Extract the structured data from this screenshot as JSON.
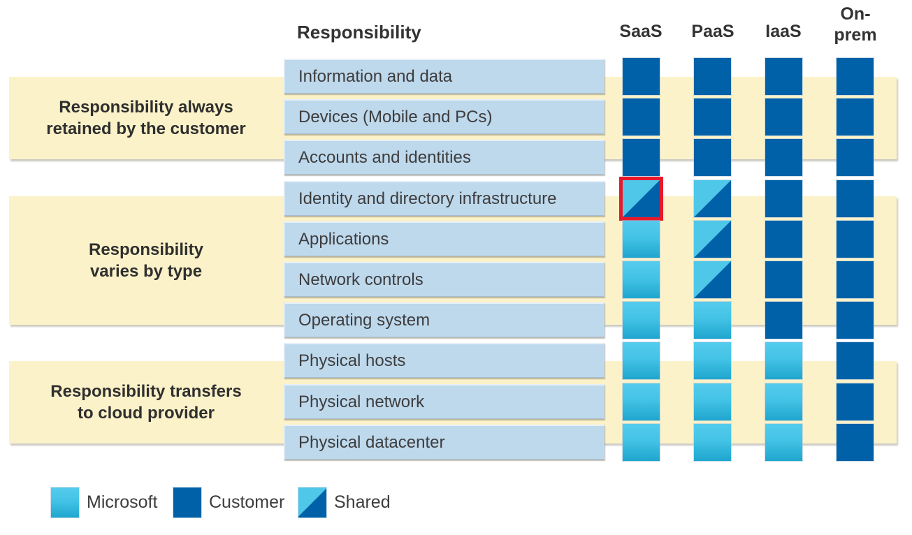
{
  "header": {
    "responsibility": "Responsibility"
  },
  "columns": [
    {
      "id": "saas",
      "label": "SaaS"
    },
    {
      "id": "paas",
      "label": "PaaS"
    },
    {
      "id": "iaas",
      "label": "IaaS"
    },
    {
      "id": "onprem",
      "label": "On-\nprem"
    }
  ],
  "groups": [
    {
      "id": "retained",
      "label": "Responsibility always\nretained by the customer"
    },
    {
      "id": "varies",
      "label": "Responsibility\nvaries by type"
    },
    {
      "id": "transfers",
      "label": "Responsibility transfers\nto cloud provider"
    }
  ],
  "rows": [
    {
      "label": "Information and data",
      "cells": [
        "customer",
        "customer",
        "customer",
        "customer"
      ]
    },
    {
      "label": "Devices (Mobile and PCs)",
      "cells": [
        "customer",
        "customer",
        "customer",
        "customer"
      ]
    },
    {
      "label": "Accounts and identities",
      "cells": [
        "customer",
        "customer",
        "customer",
        "customer"
      ]
    },
    {
      "label": "Identity and directory infrastructure",
      "cells": [
        "shared",
        "shared",
        "customer",
        "customer"
      ]
    },
    {
      "label": "Applications",
      "cells": [
        "microsoft",
        "shared",
        "customer",
        "customer"
      ]
    },
    {
      "label": "Network controls",
      "cells": [
        "microsoft",
        "shared",
        "customer",
        "customer"
      ]
    },
    {
      "label": "Operating system",
      "cells": [
        "microsoft",
        "microsoft",
        "customer",
        "customer"
      ]
    },
    {
      "label": "Physical hosts",
      "cells": [
        "microsoft",
        "microsoft",
        "microsoft",
        "customer"
      ]
    },
    {
      "label": "Physical network",
      "cells": [
        "microsoft",
        "microsoft",
        "microsoft",
        "customer"
      ]
    },
    {
      "label": "Physical datacenter",
      "cells": [
        "microsoft",
        "microsoft",
        "microsoft",
        "customer"
      ]
    }
  ],
  "highlight": {
    "row": 3,
    "col": 0
  },
  "legend": [
    {
      "type": "microsoft",
      "label": "Microsoft"
    },
    {
      "type": "customer",
      "label": "Customer"
    },
    {
      "type": "shared",
      "label": "Shared"
    }
  ],
  "colors": {
    "microsoft_top": "#55CBEC",
    "microsoft_bottom": "#1FA6CE",
    "customer": "#0061A8",
    "highlight_red": "#E8192B",
    "band_yellow": "#FBF2C9",
    "row_label_blue": "#BED8EC",
    "text_dark": "#3D3D3D"
  }
}
